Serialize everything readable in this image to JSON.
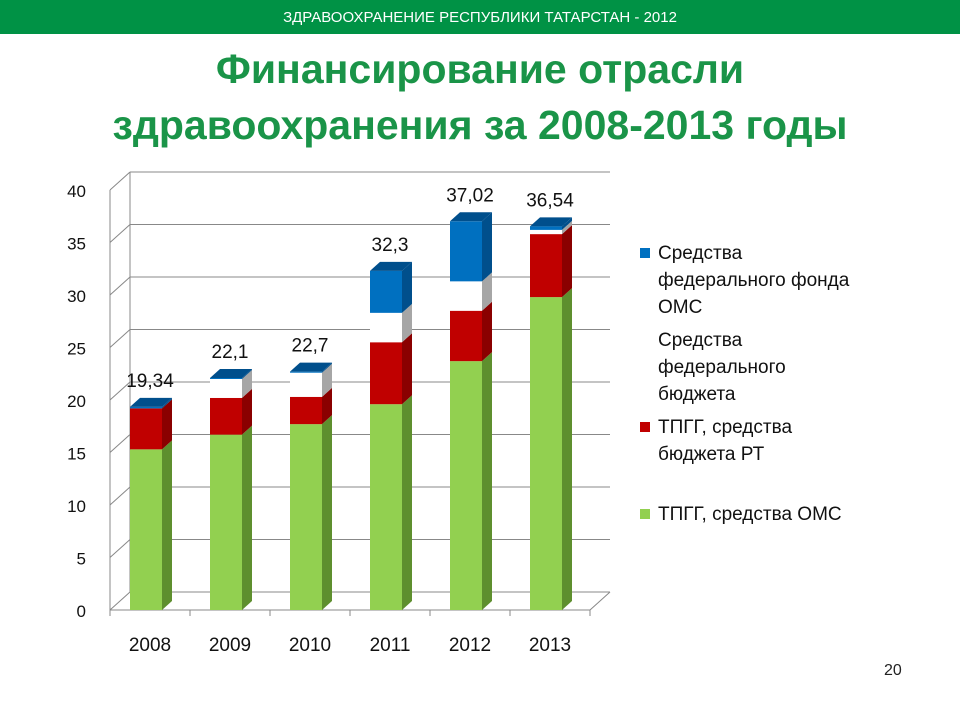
{
  "header": {
    "banner": "ЗДРАВООХРАНЕНИЕ РЕСПУБЛИКИ ТАТАРСТАН - 2012",
    "page_number": "20"
  },
  "chart_data": {
    "type": "bar",
    "stacked": true,
    "style": "3d",
    "title_line1": "Финансирование отрасли",
    "title_line2": "здравоохранения за 2008-2013 годы",
    "categories": [
      "2008",
      "2009",
      "2010",
      "2011",
      "2012",
      "2013"
    ],
    "ylim": [
      0,
      40
    ],
    "yticks": [
      "0",
      "5",
      "10",
      "15",
      "20",
      "25",
      "30",
      "35",
      "40"
    ],
    "grid": true,
    "legend_position": "right",
    "totals": [
      "19,34",
      "22,1",
      "22,7",
      "32,3",
      "37,02",
      "36,54"
    ],
    "series": [
      {
        "name": "ТПГГ, средства ОМС",
        "color": "#92d050",
        "side": "#5e8f2e",
        "values": [
          15.3,
          16.7,
          17.7,
          19.6,
          23.7,
          29.8
        ]
      },
      {
        "name": "ТПГГ, средства бюджета РТ",
        "color": "#c00000",
        "side": "#8a0000",
        "values": [
          3.9,
          3.5,
          2.6,
          5.9,
          4.8,
          6.0
        ]
      },
      {
        "name": "Средства федерального бюджета",
        "color": "#ffffff",
        "side": "#a6a6a6",
        "values": [
          0,
          1.8,
          2.3,
          2.8,
          2.8,
          0.4
        ]
      },
      {
        "name": "Средства федерального фонда ОМС",
        "color": "#0070c0",
        "side": "#004f8c",
        "values": [
          0.14,
          0.1,
          0.1,
          4.0,
          5.72,
          0.34
        ]
      }
    ]
  },
  "legend": {
    "items": [
      {
        "lines": [
          "Средства",
          "федерального фонда",
          "ОМС"
        ],
        "color": "#0070c0"
      },
      {
        "lines": [
          "Средства",
          "федерального",
          "бюджета"
        ],
        "color": "#ffffff"
      },
      {
        "lines": [
          "ТПГГ, средства",
          "бюджета РТ"
        ],
        "color": "#c00000"
      },
      {
        "lines": [
          "ТПГГ, средства ОМС"
        ],
        "color": "#92d050"
      }
    ]
  }
}
